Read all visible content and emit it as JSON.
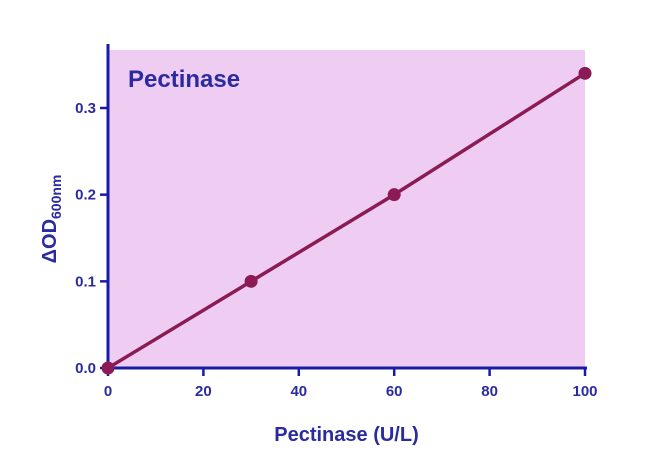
{
  "chart_data": {
    "type": "line",
    "title": "Pectinase",
    "xlabel": "Pectinase (U/L)",
    "ylabel_prefix": "ΔOD",
    "ylabel_subscript": "600nm",
    "x": [
      0,
      30,
      60,
      100
    ],
    "series": [
      {
        "values": [
          0.0,
          0.1,
          0.2,
          0.34
        ]
      }
    ],
    "xlim": [
      0,
      100
    ],
    "ylim": [
      0,
      0.35
    ],
    "xticks": [
      0,
      20,
      40,
      60,
      80,
      100
    ],
    "xtick_labels": [
      "0",
      "20",
      "40",
      "60",
      "80",
      "100"
    ],
    "yticks": [
      0.0,
      0.1,
      0.2,
      0.3
    ],
    "ytick_labels": [
      "0.0",
      "0.1",
      "0.2",
      "0.3"
    ],
    "grid": false,
    "colors": {
      "plot_background": "#efcdf3",
      "axes": "#1a1aa8",
      "text": "#2b2ba0",
      "series": "#8a1b54"
    }
  }
}
